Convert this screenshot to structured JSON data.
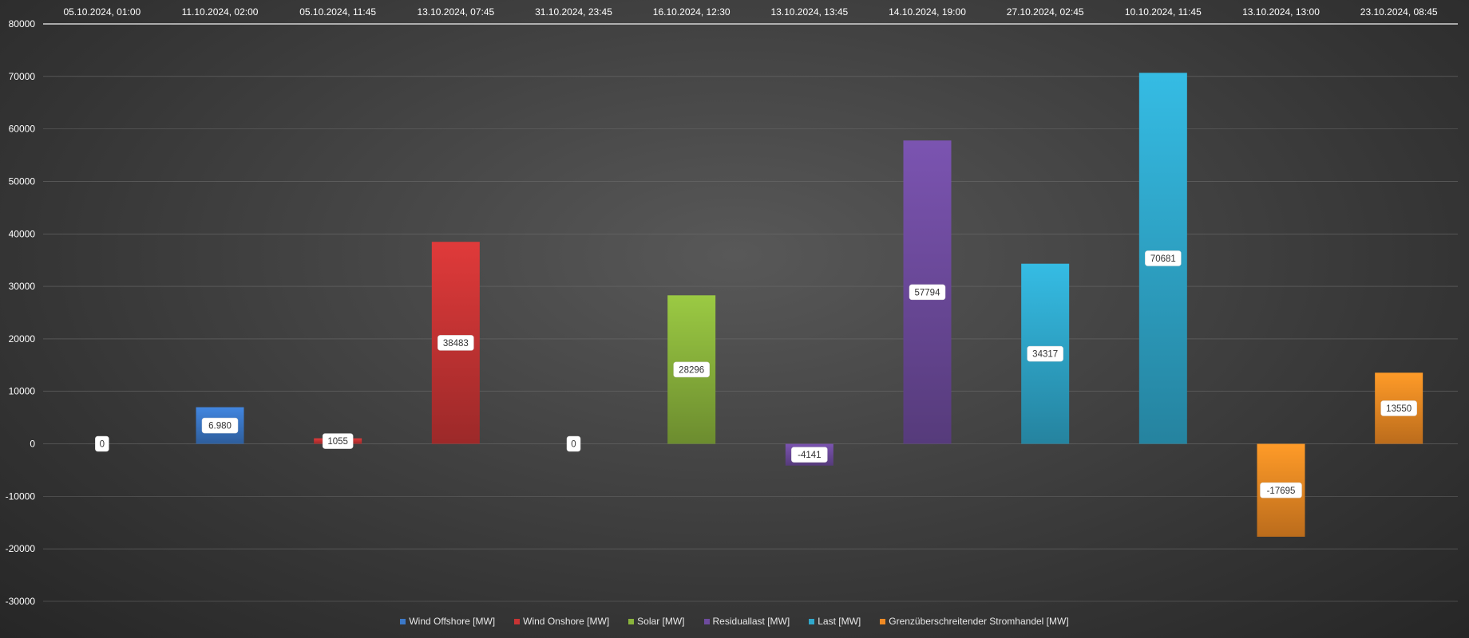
{
  "chart_data": {
    "type": "bar",
    "categories": [
      "05.10.2024, 01:00",
      "11.10.2024, 02:00",
      "05.10.2024, 11:45",
      "13.10.2024, 07:45",
      "31.10.2024, 23:45",
      "16.10.2024, 12:30",
      "13.10.2024, 13:45",
      "14.10.2024, 19:00",
      "27.10.2024, 02:45",
      "10.10.2024, 11:45",
      "13.10.2024, 13:00",
      "23.10.2024, 08:45"
    ],
    "values": [
      0,
      6980,
      1055,
      38483,
      0,
      28296,
      -4141,
      57794,
      34317,
      70681,
      -17695,
      13550
    ],
    "value_labels": [
      "0",
      "6.980",
      "1055",
      "38483",
      "0",
      "28296",
      "-4141",
      "57794",
      "34317",
      "70681",
      "-17695",
      "13550"
    ],
    "bar_series_index": [
      0,
      0,
      1,
      1,
      2,
      2,
      3,
      3,
      4,
      4,
      5,
      5
    ],
    "series": [
      {
        "name": "Wind Offshore [MW]",
        "color": "#3b78c8"
      },
      {
        "name": "Wind Onshore [MW]",
        "color": "#c83434"
      },
      {
        "name": "Solar [MW]",
        "color": "#8ab43c"
      },
      {
        "name": "Residuallast [MW]",
        "color": "#6e4b9e"
      },
      {
        "name": "Last [MW]",
        "color": "#2fa8cc"
      },
      {
        "name": "Grenzüberschreitender Stromhandel [MW]",
        "color": "#f08a24"
      }
    ],
    "y_ticks": [
      "80000",
      "70000",
      "60000",
      "50000",
      "40000",
      "30000",
      "20000",
      "10000",
      "0",
      "-10000",
      "-20000",
      "-30000"
    ],
    "ylim": [
      -30000,
      80000
    ],
    "grid": true,
    "legend_position": "bottom",
    "category_axis_position": "top"
  }
}
